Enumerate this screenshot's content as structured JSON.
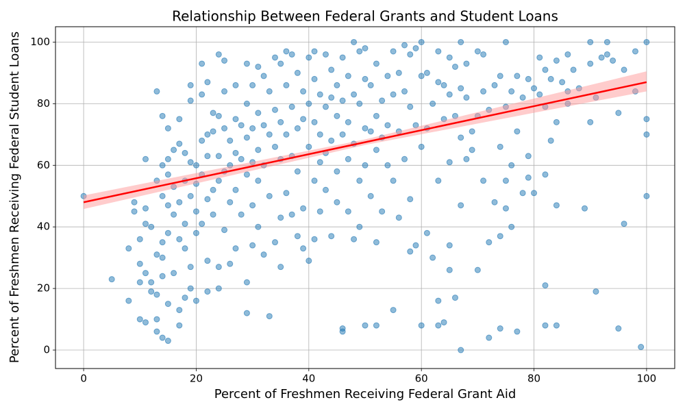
{
  "chart_data": {
    "type": "scatter",
    "title": "Relationship Between Federal Grants and Student Loans",
    "x_label": "Percent of Freshmen Receiving Federal Grant Aid",
    "y_label": "Percent of Freshmen Receiving Federal Student Loans",
    "color": "#1f77b4",
    "xlim": [
      -5,
      105
    ],
    "ylim": [
      -6,
      105
    ],
    "xticks": [
      0,
      20,
      40,
      60,
      80,
      100
    ],
    "yticks": [
      0,
      20,
      40,
      60,
      80,
      100
    ],
    "grid": true,
    "x": [
      0,
      5,
      8,
      8,
      9,
      9,
      10,
      10,
      10,
      10,
      11,
      11,
      11,
      11,
      11,
      12,
      12,
      12,
      13,
      13,
      13,
      13,
      13,
      13,
      14,
      14,
      14,
      14,
      14,
      14,
      14,
      15,
      15,
      15,
      15,
      15,
      15,
      15,
      16,
      16,
      16,
      16,
      17,
      17,
      17,
      17,
      17,
      17,
      18,
      18,
      18,
      18,
      18,
      19,
      19,
      19,
      19,
      19,
      19,
      20,
      20,
      20,
      20,
      20,
      21,
      21,
      21,
      21,
      21,
      22,
      22,
      22,
      22,
      22,
      22,
      23,
      23,
      23,
      23,
      24,
      24,
      24,
      24,
      24,
      24,
      25,
      25,
      25,
      25,
      25,
      26,
      26,
      26,
      26,
      27,
      27,
      27,
      27,
      27,
      28,
      28,
      28,
      29,
      29,
      29,
      29,
      29,
      29,
      30,
      30,
      30,
      30,
      30,
      31,
      31,
      31,
      31,
      31,
      32,
      32,
      32,
      32,
      33,
      33,
      33,
      33,
      34,
      34,
      34,
      34,
      35,
      35,
      35,
      35,
      35,
      36,
      36,
      36,
      36,
      37,
      37,
      37,
      37,
      38,
      38,
      38,
      38,
      39,
      39,
      39,
      39,
      40,
      40,
      40,
      40,
      41,
      41,
      41,
      41,
      41,
      42,
      42,
      42,
      42,
      43,
      43,
      43,
      43,
      44,
      44,
      44,
      44,
      45,
      45,
      45,
      45,
      46,
      46,
      46,
      46,
      46,
      47,
      47,
      47,
      47,
      48,
      48,
      48,
      48,
      49,
      49,
      49,
      49,
      50,
      50,
      50,
      50,
      50,
      51,
      51,
      51,
      52,
      52,
      52,
      52,
      52,
      53,
      53,
      53,
      54,
      54,
      54,
      55,
      55,
      55,
      55,
      56,
      56,
      56,
      57,
      57,
      57,
      58,
      58,
      58,
      58,
      59,
      59,
      59,
      60,
      60,
      60,
      60,
      61,
      61,
      61,
      62,
      62,
      63,
      63,
      63,
      63,
      63,
      64,
      64,
      64,
      65,
      65,
      65,
      65,
      65,
      66,
      66,
      66,
      67,
      67,
      67,
      67,
      67,
      68,
      68,
      68,
      69,
      69,
      70,
      70,
      70,
      71,
      71,
      71,
      72,
      72,
      72,
      73,
      73,
      74,
      74,
      74,
      74,
      75,
      75,
      75,
      75,
      76,
      76,
      76,
      77,
      77,
      77,
      78,
      78,
      79,
      79,
      79,
      80,
      80,
      81,
      81,
      82,
      82,
      82,
      82,
      82,
      83,
      83,
      84,
      84,
      84,
      84,
      85,
      86,
      86,
      86,
      87,
      88,
      89,
      90,
      90,
      90,
      91,
      91,
      92,
      93,
      93,
      94,
      95,
      95,
      96,
      96,
      98,
      98,
      99,
      100,
      100,
      100,
      100
    ],
    "y": [
      50,
      23,
      33,
      16,
      48,
      45,
      36,
      28,
      22,
      10,
      62,
      46,
      41,
      25,
      9,
      40,
      22,
      19,
      84,
      55,
      31,
      18,
      10,
      6,
      76,
      60,
      50,
      35,
      30,
      24,
      4,
      72,
      62,
      57,
      47,
      38,
      15,
      3,
      65,
      53,
      44,
      25,
      75,
      67,
      48,
      36,
      13,
      8,
      64,
      55,
      41,
      33,
      17,
      86,
      81,
      61,
      50,
      27,
      20,
      60,
      54,
      45,
      38,
      16,
      93,
      83,
      68,
      57,
      41,
      87,
      70,
      63,
      49,
      29,
      19,
      77,
      71,
      52,
      44,
      96,
      76,
      63,
      55,
      27,
      20,
      94,
      84,
      72,
      58,
      39,
      68,
      60,
      48,
      28,
      86,
      75,
      64,
      52,
      33,
      73,
      62,
      44,
      93,
      80,
      69,
      57,
      22,
      12,
      86,
      72,
      61,
      47,
      34,
      92,
      77,
      65,
      55,
      40,
      89,
      73,
      60,
      31,
      84,
      70,
      50,
      11,
      95,
      78,
      66,
      35,
      93,
      74,
      62,
      43,
      27,
      97,
      86,
      70,
      51,
      96,
      79,
      63,
      44,
      90,
      72,
      58,
      37,
      84,
      75,
      46,
      33,
      95,
      80,
      66,
      29,
      97,
      88,
      74,
      55,
      36,
      83,
      70,
      61,
      45,
      96,
      79,
      64,
      52,
      91,
      82,
      68,
      37,
      86,
      76,
      58,
      48,
      95,
      81,
      70,
      7,
      6,
      89,
      74,
      62,
      45,
      100,
      83,
      67,
      36,
      97,
      80,
      55,
      40,
      98,
      88,
      72,
      60,
      8,
      86,
      71,
      50,
      93,
      76,
      65,
      35,
      8,
      81,
      69,
      45,
      89,
      73,
      60,
      97,
      83,
      55,
      13,
      90,
      71,
      43,
      99,
      84,
      62,
      96,
      79,
      49,
      32,
      98,
      73,
      34,
      100,
      89,
      66,
      8,
      90,
      72,
      38,
      80,
      30,
      97,
      87,
      55,
      16,
      8,
      86,
      75,
      9,
      95,
      83,
      61,
      34,
      26,
      92,
      76,
      17,
      100,
      85,
      69,
      47,
      0,
      93,
      82,
      62,
      71,
      65,
      97,
      76,
      26,
      96,
      84,
      55,
      78,
      35,
      4,
      86,
      48,
      89,
      66,
      37,
      7,
      100,
      79,
      55,
      46,
      84,
      60,
      40,
      89,
      71,
      6,
      82,
      51,
      88,
      63,
      56,
      85,
      51,
      95,
      83,
      91,
      79,
      57,
      21,
      8,
      88,
      68,
      94,
      74,
      47,
      8,
      87,
      96,
      84,
      80,
      91,
      85,
      46,
      100,
      93,
      74,
      82,
      19,
      95,
      100,
      96,
      94,
      77,
      7,
      91,
      41,
      97,
      84,
      1,
      100,
      75,
      70,
      50
    ],
    "regression": {
      "x": [
        0,
        100
      ],
      "y": [
        48,
        87
      ],
      "color": "#ff0000"
    },
    "confidence_band": {
      "x": [
        0,
        50,
        100
      ],
      "lower": [
        45.8,
        66.6,
        84
      ],
      "upper": [
        50.2,
        68.4,
        90.5
      ],
      "color": "#ff9999"
    }
  }
}
